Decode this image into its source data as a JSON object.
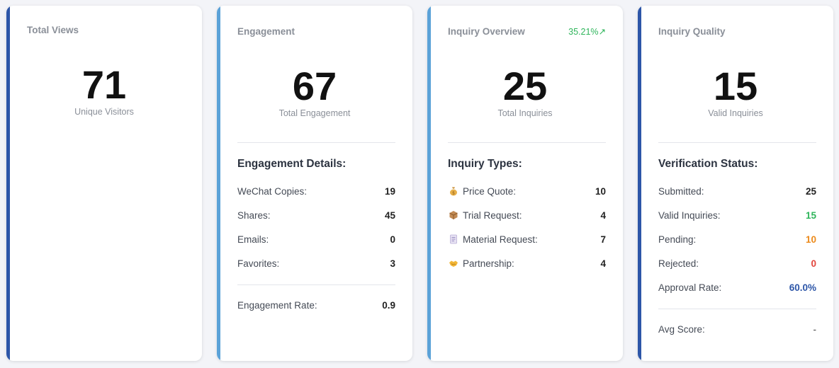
{
  "views": {
    "title": "Total Views",
    "value": "71",
    "label": "Unique Visitors"
  },
  "engagement": {
    "title": "Engagement",
    "value": "67",
    "label": "Total Engagement",
    "details_title": "Engagement Details:",
    "items": [
      {
        "label": "WeChat Copies:",
        "value": "19"
      },
      {
        "label": "Shares:",
        "value": "45"
      },
      {
        "label": "Emails:",
        "value": "0"
      },
      {
        "label": "Favorites:",
        "value": "3"
      }
    ],
    "rate_label": "Engagement Rate:",
    "rate_value": "0.9"
  },
  "inquiry": {
    "title": "Inquiry Overview",
    "trend": "35.21%↗",
    "value": "25",
    "label": "Total Inquiries",
    "types_title": "Inquiry Types:",
    "items": [
      {
        "icon": "money-bag-icon",
        "label": "Price Quote:",
        "value": "10"
      },
      {
        "icon": "package-icon",
        "label": "Trial Request:",
        "value": "4"
      },
      {
        "icon": "document-icon",
        "label": "Material Request:",
        "value": "7"
      },
      {
        "icon": "handshake-icon",
        "label": "Partnership:",
        "value": "4"
      }
    ]
  },
  "quality": {
    "title": "Inquiry Quality",
    "value": "15",
    "label": "Valid Inquiries",
    "status_title": "Verification Status:",
    "items": [
      {
        "label": "Submitted:",
        "value": "25"
      },
      {
        "label": "Valid Inquiries:",
        "value": "15"
      },
      {
        "label": "Pending:",
        "value": "10"
      },
      {
        "label": "Rejected:",
        "value": "0"
      },
      {
        "label": "Approval Rate:",
        "value": "60.0%"
      }
    ],
    "avg_label": "Avg Score:",
    "avg_value": "-"
  },
  "colors": {
    "accent_dark": "#2d56a8",
    "accent_light": "#5ba2d8",
    "positive": "#2fb55b",
    "warning": "#ec8a1b",
    "danger": "#e2463d"
  }
}
